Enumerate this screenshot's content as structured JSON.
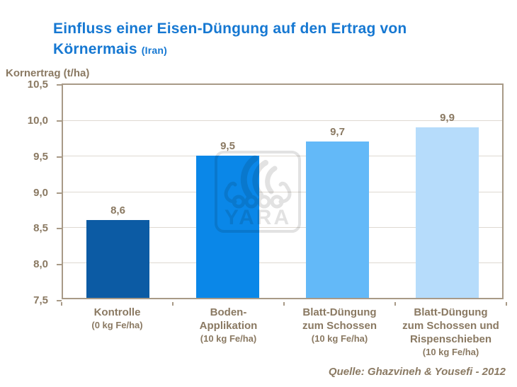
{
  "header": {
    "title_line1": "Einfluss einer Eisen-Düngung auf den Ertrag von",
    "title_line2": "Körnermais",
    "title_suffix": "(Iran)"
  },
  "footer": {
    "source": "Quelle: Ghazvineh & Yousefi - 2012"
  },
  "watermark": {
    "icon": "yara-viking-ship-logo",
    "text": "YARA"
  },
  "colors": {
    "title_blue": "#1678d2",
    "text_brown": "#8a7962",
    "axis_border": "#a89a87",
    "gridline": "#ded9d2",
    "watermark_gray": "#e2e2e2"
  },
  "chart_data": {
    "type": "bar",
    "title": "Einfluss einer Eisen-Düngung auf den Ertrag von Körnermais (Iran)",
    "ylabel": "Kornertrag (t/ha)",
    "xlabel": "",
    "categories": [
      "Kontrolle",
      "Boden-Applikation",
      "Blatt-Düngung zum Schossen",
      "Blatt-Düngung zum Schossen und Rispenschieben"
    ],
    "category_display_lines": [
      [
        "Kontrolle"
      ],
      [
        "Boden-",
        "Applikation"
      ],
      [
        "Blatt-Düngung",
        "zum Schossen"
      ],
      [
        "Blatt-Düngung",
        "zum Schossen und",
        "Rispenschieben"
      ]
    ],
    "category_sublabels": [
      "(0 kg Fe/ha)",
      "(10 kg Fe/ha)",
      "(10 kg Fe/ha)",
      "(10 kg Fe/ha)"
    ],
    "values": [
      8.6,
      9.5,
      9.7,
      9.9
    ],
    "value_labels": [
      "8,6",
      "9,5",
      "9,7",
      "9,9"
    ],
    "bar_colors": [
      "#0c5ba4",
      "#0a87e8",
      "#63b9f8",
      "#b6dcfb"
    ],
    "ylim": [
      7.5,
      10.5
    ],
    "ytick_step": 0.5,
    "ytick_labels": [
      "7,5",
      "8,0",
      "8,5",
      "9,0",
      "9,5",
      "10,0",
      "10,5"
    ],
    "grid": true,
    "legend": false
  }
}
